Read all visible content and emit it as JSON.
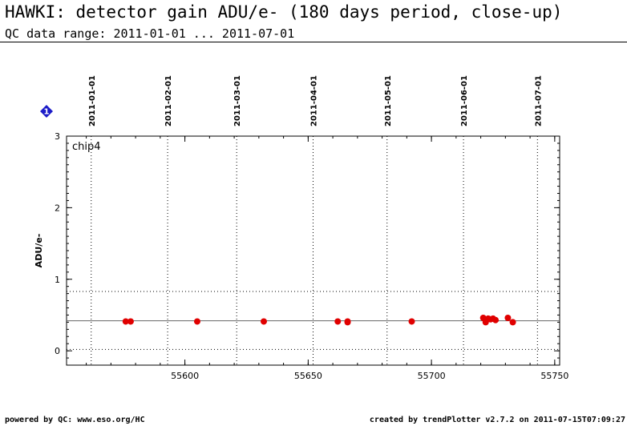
{
  "title": "HAWKI: detector gain ADU/e- (180 days period, close-up)",
  "subtitle": "QC data range: 2011-01-01 ... 2011-07-01",
  "badge_label": "1",
  "footer": {
    "left": "powered by QC: www.eso.org/HC",
    "right": "created by trendPlotter v2.7.2 on 2011-07-15T07:09:27"
  },
  "colors": {
    "points": "#e00000",
    "badge": "#1c1cc8",
    "text": "#000000"
  },
  "chart_data": {
    "type": "scatter",
    "panel_label": "chip4",
    "xlabel": "",
    "ylabel": "ADU/e-",
    "xlim": [
      55552,
      55752
    ],
    "ylim": [
      -0.2,
      3.0
    ],
    "x_ticks": [
      55600,
      55650,
      55700,
      55750
    ],
    "y_ticks": [
      0,
      1,
      2,
      3
    ],
    "date_markers": [
      {
        "label": "2011-01-01",
        "x": 55562
      },
      {
        "label": "2011-02-01",
        "x": 55593
      },
      {
        "label": "2011-03-01",
        "x": 55621
      },
      {
        "label": "2011-04-01",
        "x": 55652
      },
      {
        "label": "2011-05-01",
        "x": 55682
      },
      {
        "label": "2011-06-01",
        "x": 55713
      },
      {
        "label": "2011-07-01",
        "x": 55743
      }
    ],
    "reference_line": 0.42,
    "dotted_limits": [
      0.83,
      0.02
    ],
    "grid": false,
    "points": [
      {
        "x": 55576,
        "y": 0.41
      },
      {
        "x": 55578,
        "y": 0.41
      },
      {
        "x": 55605,
        "y": 0.41
      },
      {
        "x": 55632,
        "y": 0.41
      },
      {
        "x": 55662,
        "y": 0.41
      },
      {
        "x": 55666,
        "y": 0.41
      },
      {
        "x": 55666,
        "y": 0.4
      },
      {
        "x": 55692,
        "y": 0.41
      },
      {
        "x": 55721,
        "y": 0.46
      },
      {
        "x": 55722,
        "y": 0.43
      },
      {
        "x": 55722,
        "y": 0.4
      },
      {
        "x": 55723,
        "y": 0.45
      },
      {
        "x": 55724,
        "y": 0.44
      },
      {
        "x": 55725,
        "y": 0.45
      },
      {
        "x": 55726,
        "y": 0.43
      },
      {
        "x": 55731,
        "y": 0.46
      },
      {
        "x": 55733,
        "y": 0.4
      }
    ]
  }
}
